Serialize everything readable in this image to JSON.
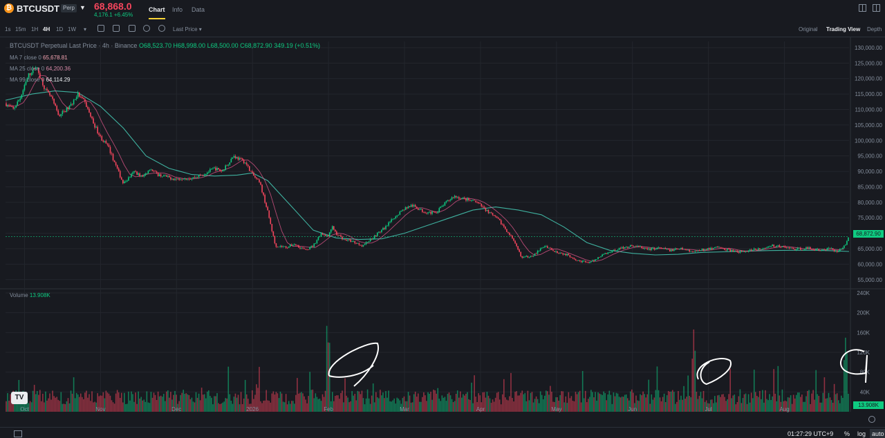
{
  "header": {
    "coin_icon": "bitcoin-icon",
    "coin_glyph": "₿",
    "symbol": "BTCUSDT",
    "badge": "Perp",
    "last_price": "68,868.0",
    "change": "4,176.1 +6.45%",
    "tabs": [
      "Chart",
      "Info",
      "Data"
    ]
  },
  "toolbar": {
    "timeframes": [
      "1s",
      "15m",
      "1H",
      "4H",
      "1D",
      "1W"
    ],
    "active_timeframe": "4H",
    "price_type": "Last Price ▾",
    "views": [
      "Original",
      "Trading View",
      "Depth"
    ],
    "active_view": "Trading View"
  },
  "legend": {
    "title": "BTCUSDT Perpetual Last Price · 4h · Binance",
    "open": "O68,523.70",
    "high": "H68,998.00",
    "low": "L68,500.00",
    "close": "C68,872.90",
    "delta": "349.19 (+0.51%)",
    "ma7_label": "MA 7 close 0",
    "ma7_value": "65,678.81",
    "ma25_label": "MA 25 close 0",
    "ma25_value": "64,200.36",
    "ma99_label": "MA 99 close 0",
    "ma99_value": "64,114.29",
    "volume_label": "Volume",
    "volume_value": "13.908K"
  },
  "price_tag": "68,872.90",
  "volume_tag": "13.908K",
  "tv_logo": "TV",
  "footer": {
    "clock": "01:27:29 UTC+9",
    "percent": "%",
    "log": "log",
    "auto": "auto"
  },
  "colors": {
    "up": "#0ecb81",
    "down": "#f6465d",
    "ma7": "#f0b90b",
    "ma25": "#e0568a",
    "ma99": "#3fb2a0",
    "background": "#181a20",
    "grid": "#23262d"
  },
  "chart_data": {
    "type": "line",
    "title": "BTCUSDT Perpetual Last Price · 4h · Binance",
    "y_ticks": [
      "130,000.00",
      "125,000.00",
      "120,000.00",
      "115,000.00",
      "110,000.00",
      "105,000.00",
      "100,000.00",
      "95,000.00",
      "90,000.00",
      "85,000.00",
      "80,000.00",
      "75,000.00",
      "70,000.00",
      "65,000.00",
      "60,000.00",
      "55,000.00"
    ],
    "y_tick_values": [
      130000,
      125000,
      120000,
      115000,
      110000,
      105000,
      100000,
      95000,
      90000,
      85000,
      80000,
      75000,
      70000,
      65000,
      60000,
      55000
    ],
    "ylim": [
      52500,
      132000
    ],
    "x_ticks": [
      "Oct",
      "Nov",
      "Dec",
      "2026",
      "Feb",
      "Mar",
      "Apr",
      "May",
      "Jun",
      "Jul",
      "Aug"
    ],
    "x_tick_months": [
      0,
      1,
      2,
      3,
      4,
      5,
      6,
      7,
      8,
      9,
      10
    ],
    "xlim_months": [
      -0.25,
      10.85
    ],
    "price_series": {
      "name": "Close",
      "x_month": [
        -0.25,
        -0.15,
        -0.05,
        0.05,
        0.15,
        0.28,
        0.35,
        0.45,
        0.6,
        0.7,
        0.8,
        0.9,
        1.0,
        1.1,
        1.2,
        1.3,
        1.45,
        1.55,
        1.65,
        1.75,
        1.9,
        2.0,
        2.1,
        2.2,
        2.35,
        2.5,
        2.6,
        2.75,
        2.9,
        3.0,
        3.1,
        3.2,
        3.3,
        3.45,
        3.55,
        3.7,
        3.8,
        3.9,
        4.0,
        4.05,
        4.1,
        4.2,
        4.3,
        4.45,
        4.6,
        4.75,
        4.9,
        5.0,
        5.1,
        5.25,
        5.4,
        5.55,
        5.65,
        5.8,
        5.95,
        6.1,
        6.25,
        6.4,
        6.55,
        6.7,
        6.85,
        7.0,
        7.15,
        7.3,
        7.45,
        7.6,
        7.75,
        7.9,
        8.0,
        8.1,
        8.2,
        8.35,
        8.5,
        8.65,
        8.8,
        8.95,
        9.1,
        9.25,
        9.4,
        9.55,
        9.7,
        9.85,
        10.0,
        10.15,
        10.3,
        10.45,
        10.6,
        10.7,
        10.8,
        10.85
      ],
      "y": [
        112000,
        110000,
        114000,
        121000,
        124000,
        116000,
        114000,
        108000,
        111000,
        115000,
        112000,
        106000,
        101000,
        98000,
        92000,
        86000,
        90000,
        88000,
        91000,
        89000,
        88000,
        87500,
        88000,
        87800,
        89000,
        91000,
        90000,
        95000,
        93000,
        89000,
        86000,
        77000,
        66000,
        65500,
        66500,
        64500,
        66000,
        70000,
        69000,
        72000,
        70000,
        68000,
        67500,
        66000,
        69000,
        72000,
        76000,
        78000,
        79000,
        77000,
        76500,
        80000,
        82000,
        81000,
        80000,
        77000,
        74000,
        69000,
        62000,
        63000,
        66000,
        64000,
        63000,
        61000,
        60500,
        63000,
        64500,
        65500,
        66000,
        65500,
        64800,
        65200,
        64500,
        65000,
        64000,
        64800,
        65500,
        64700,
        63800,
        64500,
        65000,
        66000,
        65500,
        64800,
        65200,
        64500,
        65000,
        64200,
        66000,
        68873
      ]
    },
    "ma99_series": {
      "name": "MA 99 close 0",
      "x_month": [
        -0.25,
        0.1,
        0.4,
        0.7,
        1.0,
        1.3,
        1.6,
        1.9,
        2.2,
        2.5,
        2.8,
        3.0,
        3.2,
        3.5,
        3.8,
        4.1,
        4.4,
        4.7,
        5.0,
        5.3,
        5.6,
        5.9,
        6.2,
        6.5,
        6.8,
        7.1,
        7.4,
        7.7,
        8.0,
        8.3,
        8.6,
        8.9,
        9.2,
        9.5,
        9.8,
        10.1,
        10.4,
        10.7,
        10.85
      ],
      "y": [
        113000,
        115000,
        116000,
        115500,
        111000,
        104000,
        95000,
        91000,
        89000,
        88500,
        88800,
        89500,
        87000,
        79000,
        71000,
        68500,
        68000,
        68200,
        70000,
        72500,
        75000,
        77500,
        78500,
        77500,
        76000,
        72000,
        67000,
        64500,
        63500,
        63000,
        63200,
        63800,
        64000,
        64200,
        64400,
        64500,
        64500,
        64300,
        64114
      ]
    },
    "volume_ylim": [
      0,
      240000
    ],
    "volume_ticks": [
      "240K",
      "200K",
      "160K",
      "120K",
      "80K",
      "40K"
    ],
    "volume_tick_values": [
      240000,
      200000,
      160000,
      120000,
      80000,
      40000
    ],
    "volume_highlights": [
      {
        "x_month": 4.0,
        "value": 180000
      },
      {
        "x_month": 8.8,
        "value": 170000
      },
      {
        "x_month": 10.8,
        "value": 150000
      }
    ],
    "last_volume": 13908,
    "grid": true,
    "legend": "top-left"
  }
}
